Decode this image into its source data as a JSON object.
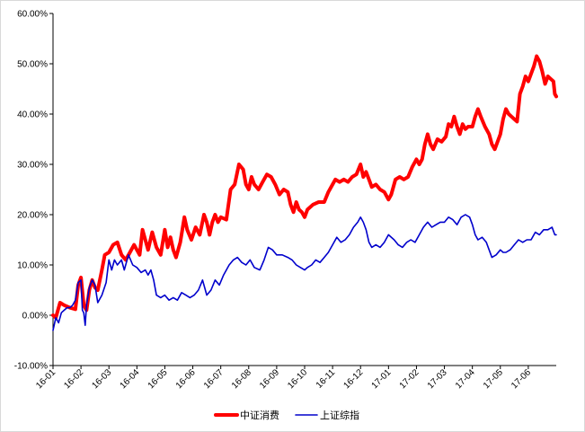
{
  "chart_data": {
    "type": "line",
    "title": "",
    "xlabel": "",
    "ylabel": "",
    "ylim": [
      -0.1,
      0.6
    ],
    "y_ticks": [
      "-10.00%",
      "0.00%",
      "10.00%",
      "20.00%",
      "30.00%",
      "40.00%",
      "50.00%",
      "60.00%"
    ],
    "x_ticks": [
      "16-01",
      "16-02",
      "16-03",
      "16-04",
      "16-05",
      "16-06",
      "16-07",
      "16-08",
      "16-09",
      "16-10",
      "16-11",
      "16-12",
      "17-01",
      "17-02",
      "17-03",
      "17-04",
      "17-05",
      "17-06"
    ],
    "grid": false,
    "legend_position": "bottom",
    "series": [
      {
        "name": "中证消费",
        "color": "#ff0000",
        "points": [
          [
            0.0,
            0.0
          ],
          [
            0.1,
            -0.005
          ],
          [
            0.25,
            0.025
          ],
          [
            0.4,
            0.02
          ],
          [
            0.6,
            0.015
          ],
          [
            0.8,
            0.012
          ],
          [
            0.9,
            0.06
          ],
          [
            1.0,
            0.075
          ],
          [
            1.1,
            0.02
          ],
          [
            1.2,
            0.01
          ],
          [
            1.3,
            0.05
          ],
          [
            1.4,
            0.07
          ],
          [
            1.5,
            0.055
          ],
          [
            1.6,
            0.05
          ],
          [
            1.75,
            0.09
          ],
          [
            1.85,
            0.12
          ],
          [
            2.0,
            0.125
          ],
          [
            2.15,
            0.14
          ],
          [
            2.3,
            0.145
          ],
          [
            2.45,
            0.12
          ],
          [
            2.6,
            0.11
          ],
          [
            2.75,
            0.125
          ],
          [
            2.9,
            0.14
          ],
          [
            3.0,
            0.13
          ],
          [
            3.1,
            0.12
          ],
          [
            3.2,
            0.17
          ],
          [
            3.3,
            0.15
          ],
          [
            3.4,
            0.13
          ],
          [
            3.55,
            0.165
          ],
          [
            3.7,
            0.135
          ],
          [
            3.85,
            0.12
          ],
          [
            4.0,
            0.17
          ],
          [
            4.1,
            0.135
          ],
          [
            4.2,
            0.155
          ],
          [
            4.3,
            0.13
          ],
          [
            4.4,
            0.115
          ],
          [
            4.55,
            0.145
          ],
          [
            4.7,
            0.195
          ],
          [
            4.8,
            0.17
          ],
          [
            4.95,
            0.15
          ],
          [
            5.1,
            0.175
          ],
          [
            5.25,
            0.16
          ],
          [
            5.4,
            0.2
          ],
          [
            5.5,
            0.185
          ],
          [
            5.6,
            0.16
          ],
          [
            5.7,
            0.185
          ],
          [
            5.8,
            0.2
          ],
          [
            5.9,
            0.185
          ],
          [
            6.0,
            0.195
          ],
          [
            6.2,
            0.19
          ],
          [
            6.35,
            0.25
          ],
          [
            6.5,
            0.26
          ],
          [
            6.65,
            0.3
          ],
          [
            6.8,
            0.29
          ],
          [
            6.9,
            0.26
          ],
          [
            7.0,
            0.25
          ],
          [
            7.1,
            0.275
          ],
          [
            7.2,
            0.26
          ],
          [
            7.35,
            0.25
          ],
          [
            7.5,
            0.265
          ],
          [
            7.65,
            0.28
          ],
          [
            7.8,
            0.275
          ],
          [
            7.95,
            0.26
          ],
          [
            8.1,
            0.24
          ],
          [
            8.25,
            0.25
          ],
          [
            8.4,
            0.245
          ],
          [
            8.5,
            0.22
          ],
          [
            8.6,
            0.205
          ],
          [
            8.7,
            0.225
          ],
          [
            8.8,
            0.21
          ],
          [
            8.9,
            0.205
          ],
          [
            9.0,
            0.195
          ],
          [
            9.1,
            0.21
          ],
          [
            9.3,
            0.22
          ],
          [
            9.5,
            0.225
          ],
          [
            9.7,
            0.225
          ],
          [
            9.85,
            0.245
          ],
          [
            10.0,
            0.26
          ],
          [
            10.1,
            0.27
          ],
          [
            10.25,
            0.265
          ],
          [
            10.4,
            0.27
          ],
          [
            10.55,
            0.265
          ],
          [
            10.7,
            0.275
          ],
          [
            10.85,
            0.28
          ],
          [
            11.0,
            0.3
          ],
          [
            11.1,
            0.275
          ],
          [
            11.2,
            0.285
          ],
          [
            11.3,
            0.27
          ],
          [
            11.4,
            0.255
          ],
          [
            11.55,
            0.26
          ],
          [
            11.7,
            0.25
          ],
          [
            11.85,
            0.245
          ],
          [
            12.0,
            0.23
          ],
          [
            12.1,
            0.24
          ],
          [
            12.25,
            0.27
          ],
          [
            12.4,
            0.275
          ],
          [
            12.55,
            0.27
          ],
          [
            12.7,
            0.275
          ],
          [
            12.85,
            0.295
          ],
          [
            13.0,
            0.31
          ],
          [
            13.1,
            0.3
          ],
          [
            13.2,
            0.31
          ],
          [
            13.3,
            0.34
          ],
          [
            13.4,
            0.36
          ],
          [
            13.5,
            0.34
          ],
          [
            13.6,
            0.33
          ],
          [
            13.75,
            0.35
          ],
          [
            13.9,
            0.345
          ],
          [
            14.05,
            0.355
          ],
          [
            14.15,
            0.38
          ],
          [
            14.25,
            0.375
          ],
          [
            14.35,
            0.395
          ],
          [
            14.45,
            0.375
          ],
          [
            14.55,
            0.36
          ],
          [
            14.65,
            0.38
          ],
          [
            14.75,
            0.37
          ],
          [
            14.85,
            0.375
          ],
          [
            15.0,
            0.375
          ],
          [
            15.1,
            0.395
          ],
          [
            15.2,
            0.41
          ],
          [
            15.3,
            0.395
          ],
          [
            15.45,
            0.375
          ],
          [
            15.6,
            0.36
          ],
          [
            15.7,
            0.34
          ],
          [
            15.8,
            0.33
          ],
          [
            15.9,
            0.345
          ],
          [
            16.0,
            0.36
          ],
          [
            16.1,
            0.39
          ],
          [
            16.2,
            0.41
          ],
          [
            16.3,
            0.4
          ],
          [
            16.4,
            0.395
          ],
          [
            16.5,
            0.39
          ],
          [
            16.6,
            0.385
          ],
          [
            16.7,
            0.44
          ],
          [
            16.8,
            0.455
          ],
          [
            16.9,
            0.475
          ],
          [
            17.0,
            0.465
          ],
          [
            17.1,
            0.48
          ],
          [
            17.2,
            0.495
          ],
          [
            17.3,
            0.515
          ],
          [
            17.4,
            0.505
          ],
          [
            17.5,
            0.485
          ],
          [
            17.6,
            0.46
          ],
          [
            17.7,
            0.475
          ],
          [
            17.8,
            0.47
          ],
          [
            17.9,
            0.465
          ],
          [
            17.95,
            0.44
          ],
          [
            18.0,
            0.435
          ]
        ]
      },
      {
        "name": "上证综指",
        "color": "#0000cc",
        "points": [
          [
            0.0,
            -0.03
          ],
          [
            0.1,
            -0.005
          ],
          [
            0.2,
            -0.015
          ],
          [
            0.3,
            0.005
          ],
          [
            0.4,
            0.01
          ],
          [
            0.5,
            0.015
          ],
          [
            0.6,
            0.015
          ],
          [
            0.7,
            0.02
          ],
          [
            0.8,
            0.03
          ],
          [
            0.9,
            0.065
          ],
          [
            1.0,
            0.07
          ],
          [
            1.05,
            0.01
          ],
          [
            1.1,
            0.005
          ],
          [
            1.15,
            -0.02
          ],
          [
            1.2,
            0.02
          ],
          [
            1.3,
            0.055
          ],
          [
            1.4,
            0.07
          ],
          [
            1.5,
            0.06
          ],
          [
            1.6,
            0.025
          ],
          [
            1.75,
            0.04
          ],
          [
            1.9,
            0.065
          ],
          [
            2.0,
            0.11
          ],
          [
            2.1,
            0.09
          ],
          [
            2.2,
            0.11
          ],
          [
            2.3,
            0.1
          ],
          [
            2.45,
            0.11
          ],
          [
            2.55,
            0.09
          ],
          [
            2.7,
            0.12
          ],
          [
            2.85,
            0.1
          ],
          [
            3.0,
            0.095
          ],
          [
            3.15,
            0.085
          ],
          [
            3.3,
            0.09
          ],
          [
            3.4,
            0.08
          ],
          [
            3.5,
            0.09
          ],
          [
            3.6,
            0.07
          ],
          [
            3.7,
            0.04
          ],
          [
            3.85,
            0.035
          ],
          [
            4.0,
            0.04
          ],
          [
            4.15,
            0.03
          ],
          [
            4.3,
            0.035
          ],
          [
            4.45,
            0.03
          ],
          [
            4.6,
            0.045
          ],
          [
            4.75,
            0.04
          ],
          [
            4.9,
            0.035
          ],
          [
            5.05,
            0.04
          ],
          [
            5.2,
            0.05
          ],
          [
            5.35,
            0.07
          ],
          [
            5.5,
            0.04
          ],
          [
            5.65,
            0.05
          ],
          [
            5.8,
            0.07
          ],
          [
            5.95,
            0.06
          ],
          [
            6.1,
            0.08
          ],
          [
            6.2,
            0.09
          ],
          [
            6.3,
            0.1
          ],
          [
            6.45,
            0.11
          ],
          [
            6.6,
            0.115
          ],
          [
            6.75,
            0.105
          ],
          [
            6.9,
            0.1
          ],
          [
            7.05,
            0.11
          ],
          [
            7.2,
            0.095
          ],
          [
            7.4,
            0.09
          ],
          [
            7.55,
            0.11
          ],
          [
            7.7,
            0.135
          ],
          [
            7.85,
            0.13
          ],
          [
            8.0,
            0.12
          ],
          [
            8.2,
            0.12
          ],
          [
            8.4,
            0.115
          ],
          [
            8.55,
            0.11
          ],
          [
            8.7,
            0.1
          ],
          [
            8.85,
            0.095
          ],
          [
            9.0,
            0.09
          ],
          [
            9.1,
            0.095
          ],
          [
            9.25,
            0.1
          ],
          [
            9.4,
            0.11
          ],
          [
            9.55,
            0.105
          ],
          [
            9.7,
            0.115
          ],
          [
            9.85,
            0.125
          ],
          [
            10.0,
            0.14
          ],
          [
            10.15,
            0.155
          ],
          [
            10.3,
            0.145
          ],
          [
            10.45,
            0.15
          ],
          [
            10.6,
            0.16
          ],
          [
            10.75,
            0.175
          ],
          [
            10.9,
            0.185
          ],
          [
            11.0,
            0.195
          ],
          [
            11.1,
            0.185
          ],
          [
            11.2,
            0.17
          ],
          [
            11.3,
            0.145
          ],
          [
            11.4,
            0.135
          ],
          [
            11.55,
            0.14
          ],
          [
            11.7,
            0.135
          ],
          [
            11.85,
            0.145
          ],
          [
            12.0,
            0.16
          ],
          [
            12.2,
            0.15
          ],
          [
            12.35,
            0.14
          ],
          [
            12.5,
            0.135
          ],
          [
            12.65,
            0.145
          ],
          [
            12.8,
            0.15
          ],
          [
            12.95,
            0.145
          ],
          [
            13.1,
            0.16
          ],
          [
            13.25,
            0.175
          ],
          [
            13.4,
            0.185
          ],
          [
            13.55,
            0.175
          ],
          [
            13.7,
            0.18
          ],
          [
            13.85,
            0.185
          ],
          [
            14.0,
            0.185
          ],
          [
            14.15,
            0.195
          ],
          [
            14.3,
            0.19
          ],
          [
            14.45,
            0.18
          ],
          [
            14.6,
            0.195
          ],
          [
            14.75,
            0.2
          ],
          [
            14.9,
            0.195
          ],
          [
            15.0,
            0.18
          ],
          [
            15.1,
            0.16
          ],
          [
            15.2,
            0.15
          ],
          [
            15.35,
            0.155
          ],
          [
            15.5,
            0.145
          ],
          [
            15.6,
            0.13
          ],
          [
            15.7,
            0.115
          ],
          [
            15.85,
            0.12
          ],
          [
            16.0,
            0.13
          ],
          [
            16.1,
            0.125
          ],
          [
            16.2,
            0.125
          ],
          [
            16.35,
            0.13
          ],
          [
            16.5,
            0.14
          ],
          [
            16.65,
            0.15
          ],
          [
            16.8,
            0.145
          ],
          [
            16.95,
            0.15
          ],
          [
            17.1,
            0.15
          ],
          [
            17.25,
            0.165
          ],
          [
            17.4,
            0.16
          ],
          [
            17.55,
            0.17
          ],
          [
            17.7,
            0.17
          ],
          [
            17.85,
            0.175
          ],
          [
            17.95,
            0.16
          ],
          [
            18.0,
            0.16
          ]
        ]
      }
    ]
  }
}
